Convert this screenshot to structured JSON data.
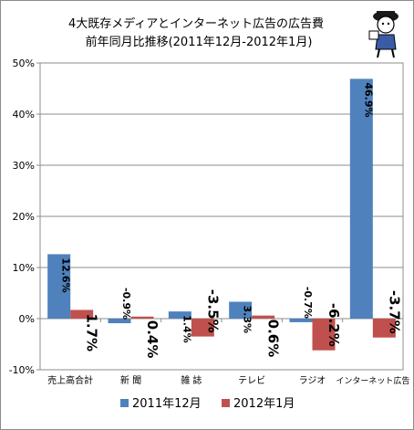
{
  "chart_data": {
    "type": "bar",
    "title": "4大既存メディアとインターネット広告の広告費",
    "subtitle": "前年同月比推移(2011年12月-2012年1月)",
    "categories": [
      "売上高合計",
      "新 聞",
      "雑 誌",
      "テレビ",
      "ラジオ",
      "インターネット広告"
    ],
    "series": [
      {
        "name": "2011年12月",
        "color": "#4f81bd",
        "values": [
          12.6,
          -0.9,
          1.4,
          3.3,
          -0.7,
          46.9
        ],
        "labels": [
          "12.6%",
          "-0.9%",
          "1.4%",
          "3.3%",
          "-0.7%",
          "46.9%"
        ]
      },
      {
        "name": "2012年1月",
        "color": "#c0504d",
        "values": [
          1.7,
          0.4,
          -3.5,
          0.6,
          -6.2,
          -3.7
        ],
        "labels": [
          "1.7%",
          "0.4%",
          "-3.5%",
          "0.6%",
          "-6.2%",
          "-3.7%"
        ]
      }
    ],
    "ylim": [
      -10,
      50
    ],
    "yticks": [
      -10,
      0,
      10,
      20,
      30,
      40,
      50
    ],
    "ytick_labels": [
      "-10%",
      "0%",
      "10%",
      "20%",
      "30%",
      "40%",
      "50%"
    ],
    "grid": true,
    "legend": "bottom"
  }
}
